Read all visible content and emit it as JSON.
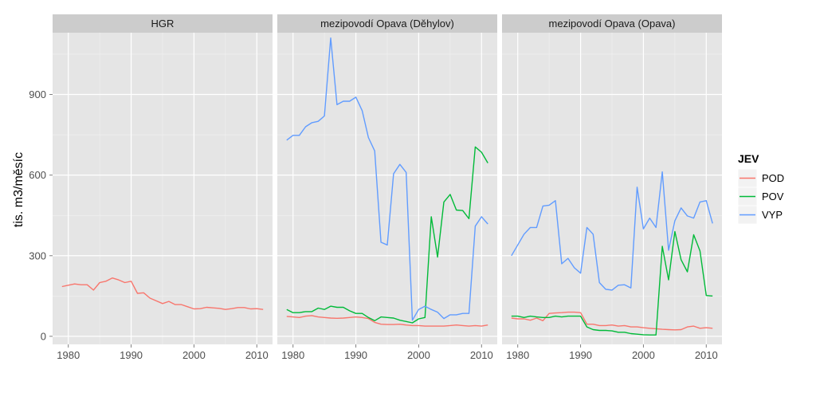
{
  "chart_data": {
    "type": "line",
    "ylabel": "tis. m3/měsíc",
    "ylim": [
      -30,
      1130
    ],
    "xlim": [
      1977.5,
      2012.5
    ],
    "y_ticks": [
      0,
      300,
      600,
      900
    ],
    "x_ticks": [
      1980,
      1990,
      2000,
      2010
    ],
    "legend": {
      "title": "JEV",
      "position": "right",
      "entries": [
        {
          "key": "POD",
          "label": "POD",
          "color": "#f8766d"
        },
        {
          "key": "POV",
          "label": "POV",
          "color": "#00ba38"
        },
        {
          "key": "VYP",
          "label": "VYP",
          "color": "#619cff"
        }
      ]
    },
    "panels": [
      {
        "title": "HGR",
        "series": [
          {
            "name": "POD",
            "x": [
              1979,
              1980,
              1981,
              1982,
              1983,
              1984,
              1985,
              1986,
              1987,
              1988,
              1989,
              1990,
              1991,
              1992,
              1993,
              1994,
              1995,
              1996,
              1997,
              1998,
              1999,
              2000,
              2001,
              2002,
              2003,
              2004,
              2005,
              2006,
              2007,
              2008,
              2009,
              2010,
              2011
            ],
            "values": [
              185,
              190,
              195,
              192,
              192,
              172,
              200,
              205,
              217,
              210,
              200,
              205,
              160,
              162,
              142,
              132,
              122,
              130,
              118,
              118,
              110,
              102,
              103,
              108,
              106,
              104,
              100,
              103,
              107,
              107,
              102,
              103,
              100
            ]
          }
        ]
      },
      {
        "title": "mezipovodí Opava (Děhylov)",
        "series": [
          {
            "name": "POD",
            "x": [
              1979,
              1980,
              1981,
              1982,
              1983,
              1984,
              1985,
              1986,
              1987,
              1988,
              1989,
              1990,
              1991,
              1992,
              1993,
              1994,
              1995,
              1996,
              1997,
              1998,
              1999,
              2000,
              2001,
              2002,
              2003,
              2004,
              2005,
              2006,
              2007,
              2008,
              2009,
              2010,
              2011
            ],
            "values": [
              74,
              72,
              70,
              75,
              77,
              72,
              70,
              68,
              67,
              68,
              70,
              72,
              70,
              66,
              52,
              45,
              44,
              44,
              45,
              42,
              40,
              40,
              38,
              38,
              38,
              38,
              40,
              42,
              40,
              38,
              40,
              38,
              42
            ]
          },
          {
            "name": "POV",
            "x": [
              1979,
              1980,
              1981,
              1982,
              1983,
              1984,
              1985,
              1986,
              1987,
              1988,
              1989,
              1990,
              1991,
              1992,
              1993,
              1994,
              1995,
              1996,
              1997,
              1998,
              1999,
              2000,
              2001,
              2002,
              2003,
              2004,
              2005,
              2006,
              2007,
              2008,
              2009,
              2010,
              2011
            ],
            "values": [
              100,
              88,
              88,
              92,
              92,
              105,
              100,
              112,
              108,
              108,
              95,
              85,
              85,
              70,
              58,
              72,
              70,
              68,
              60,
              55,
              50,
              65,
              70,
              445,
              295,
              500,
              528,
              470,
              468,
              438,
              705,
              685,
              645
            ]
          },
          {
            "name": "VYP",
            "x": [
              1979,
              1980,
              1981,
              1982,
              1983,
              1984,
              1985,
              1986,
              1987,
              1988,
              1989,
              1990,
              1991,
              1992,
              1993,
              1994,
              1995,
              1996,
              1997,
              1998,
              1999,
              2000,
              2001,
              2002,
              2003,
              2004,
              2005,
              2006,
              2007,
              2008,
              2009,
              2010,
              2011
            ],
            "values": [
              730,
              748,
              748,
              780,
              795,
              800,
              820,
              1110,
              862,
              875,
              875,
              890,
              840,
              740,
              690,
              350,
              340,
              605,
              640,
              610,
              60,
              100,
              112,
              100,
              90,
              66,
              80,
              80,
              85,
              85,
              410,
              445,
              418
            ]
          }
        ]
      },
      {
        "title": "mezipovodí Opava (Opava)",
        "series": [
          {
            "name": "POD",
            "x": [
              1979,
              1980,
              1981,
              1982,
              1983,
              1984,
              1985,
              1986,
              1987,
              1988,
              1989,
              1990,
              1991,
              1992,
              1993,
              1994,
              1995,
              1996,
              1997,
              1998,
              1999,
              2000,
              2001,
              2002,
              2003,
              2004,
              2005,
              2006,
              2007,
              2008,
              2009,
              2010,
              2011
            ],
            "values": [
              68,
              65,
              65,
              60,
              68,
              58,
              85,
              87,
              88,
              90,
              90,
              88,
              45,
              45,
              40,
              40,
              42,
              38,
              40,
              35,
              35,
              32,
              30,
              28,
              26,
              25,
              24,
              25,
              35,
              38,
              30,
              32,
              30
            ]
          },
          {
            "name": "POV",
            "x": [
              1979,
              1980,
              1981,
              1982,
              1983,
              1984,
              1985,
              1986,
              1987,
              1988,
              1989,
              1990,
              1991,
              1992,
              1993,
              1994,
              1995,
              1996,
              1997,
              1998,
              1999,
              2000,
              2001,
              2002,
              2003,
              2004,
              2005,
              2006,
              2007,
              2008,
              2009,
              2010,
              2011
            ],
            "values": [
              75,
              75,
              70,
              75,
              72,
              70,
              70,
              75,
              72,
              75,
              75,
              75,
              35,
              25,
              22,
              22,
              20,
              15,
              15,
              10,
              8,
              6,
              5,
              5,
              335,
              210,
              390,
              285,
              240,
              378,
              318,
              152,
              150
            ]
          },
          {
            "name": "VYP",
            "x": [
              1979,
              1980,
              1981,
              1982,
              1983,
              1984,
              1985,
              1986,
              1987,
              1988,
              1989,
              1990,
              1991,
              1992,
              1993,
              1994,
              1995,
              1996,
              1997,
              1998,
              1999,
              2000,
              2001,
              2002,
              2003,
              2004,
              2005,
              2006,
              2007,
              2008,
              2009,
              2010,
              2011
            ],
            "values": [
              300,
              340,
              380,
              405,
              405,
              485,
              488,
              505,
              270,
              290,
              255,
              235,
              405,
              380,
              200,
              175,
              172,
              190,
              192,
              180,
              555,
              400,
              440,
              405,
              612,
              320,
              430,
              478,
              448,
              440,
              500,
              505,
              420
            ]
          }
        ]
      }
    ]
  }
}
